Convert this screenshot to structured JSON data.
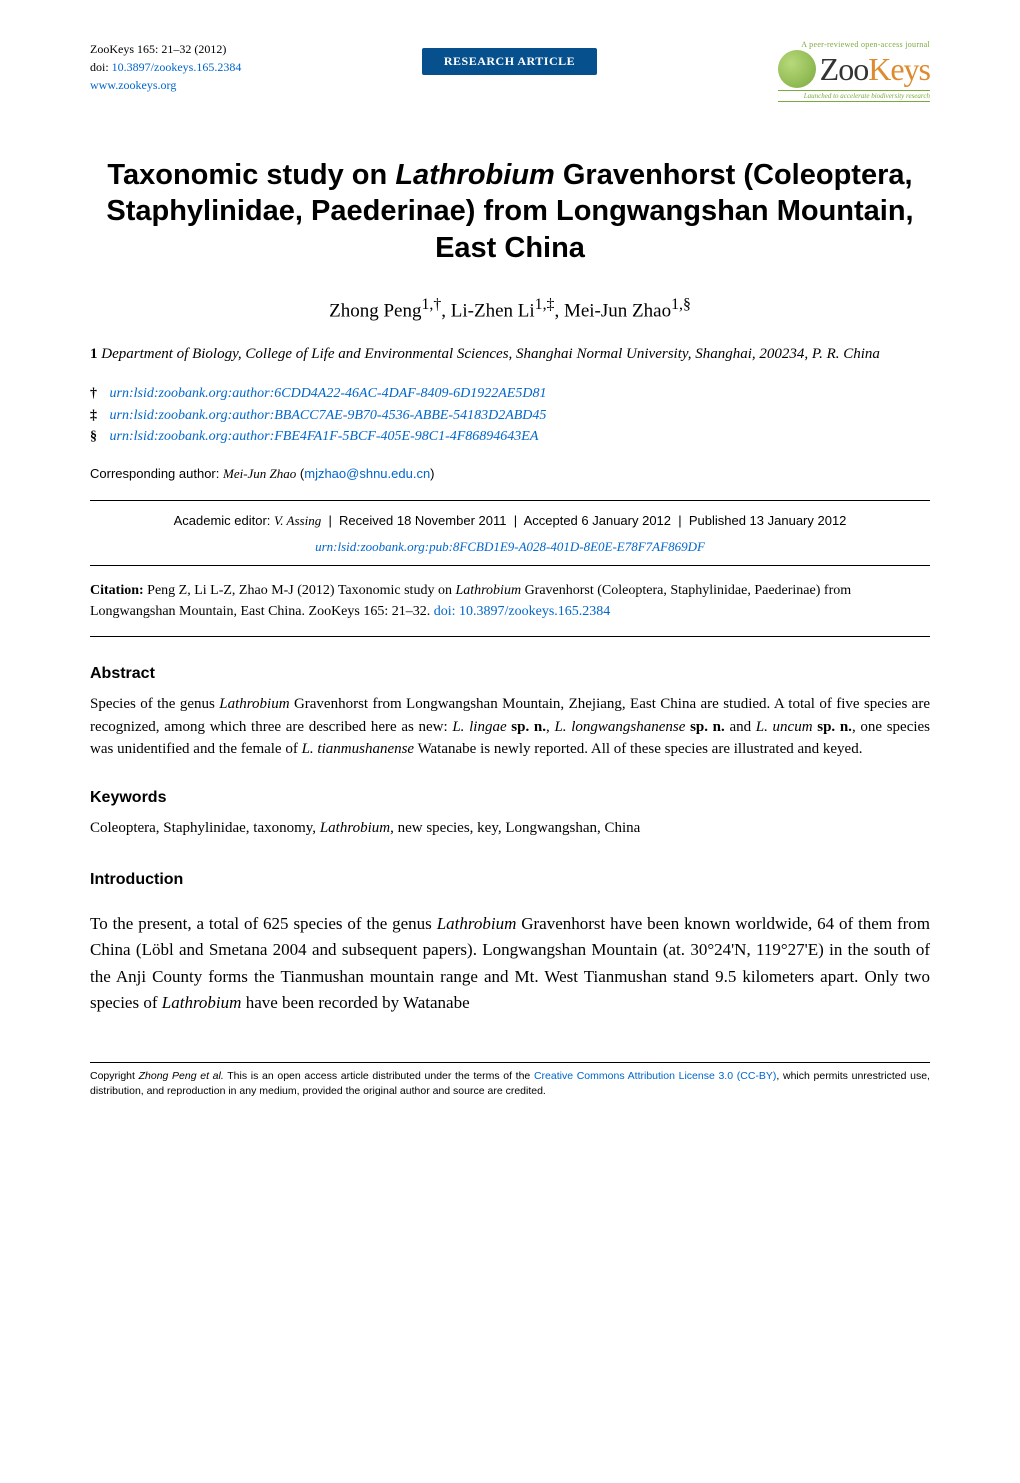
{
  "journal": {
    "ref": "ZooKeys 165: 21–32 (2012)",
    "doi_label": "doi: ",
    "doi": "10.3897/zookeys.165.2384",
    "site": "www.zookeys.org",
    "badge": "RESEARCH ARTICLE",
    "logo_top": "A peer-reviewed open-access journal",
    "logo_zoo": "Zoo",
    "logo_keys": "Keys",
    "logo_bottom": "Launched to accelerate biodiversity research"
  },
  "title_pre": "Taxonomic study on ",
  "title_genus": "Lathrobium",
  "title_post": " Gravenhorst (Coleoptera, Staphylinidae, Paederinae) from Longwangshan Mountain, East China",
  "authors": "Zhong Peng",
  "authors_sup1": "1,†",
  "authors_2": ", Li-Zhen Li",
  "authors_sup2": "1,‡",
  "authors_3": ", Mei-Jun Zhao",
  "authors_sup3": "1,§",
  "affiliation_num": "1",
  "affiliation": " Department of Biology, College of Life and Environmental Sciences, Shanghai Normal University, Shanghai, 200234, P. R. China",
  "urn1_sym": "†",
  "urn1": "urn:lsid:zoobank.org:author:6CDD4A22-46AC-4DAF-8409-6D1922AE5D81",
  "urn2_sym": "‡",
  "urn2": "urn:lsid:zoobank.org:author:BBACC7AE-9B70-4536-ABBE-54183D2ABD45",
  "urn3_sym": "§",
  "urn3": "urn:lsid:zoobank.org:author:FBE4FA1F-5BCF-405E-98C1-4F86894643EA",
  "corr_label": "Corresponding author: ",
  "corr_name": "Mei-Jun Zhao",
  "corr_email": "mjzhao@shnu.edu.cn",
  "editor_label": "Academic editor: ",
  "editor_name": "V. Assing",
  "received": "Received 18 November 2011",
  "accepted": "Accepted 6 January 2012",
  "published": "Published 13 January 2012",
  "record_urn": "urn:lsid:zoobank.org:pub:8FCBD1E9-A028-401D-8E0E-E78F7AF869DF",
  "citation_label": "Citation:",
  "citation_pre": " Peng Z, Li L-Z, Zhao M-J (2012) Taxonomic study on ",
  "citation_genus": "Lathrobium",
  "citation_post": " Gravenhorst (Coleoptera, Staphylinidae, Paederinae) from Longwangshan Mountain, East China. ZooKeys 165: 21–32. ",
  "citation_doi_label": "doi: ",
  "citation_doi": "10.3897/zookeys.165.2384",
  "abstract_head": "Abstract",
  "abstract_1": "Species of the genus ",
  "abstract_genus": "Lathrobium",
  "abstract_2": " Gravenhorst from Longwangshan Mountain, Zhejiang, East China are studied. A total of five species are recognized, among which three are described here as new: ",
  "abstract_sp1": "L. lingae",
  "abstract_spn1": "sp. n.",
  "abstract_3": ", ",
  "abstract_sp2": "L. longwangshanense",
  "abstract_spn2": "sp. n.",
  "abstract_4": " and ",
  "abstract_sp3": "L. uncum",
  "abstract_spn3": "sp. n.",
  "abstract_5": ", one species was unidentified and the female of ",
  "abstract_sp4": "L. tianmushanense",
  "abstract_6": " Watanabe is newly reported. All of these species are illustrated and keyed.",
  "keywords_head": "Keywords",
  "keywords_1": "Coleoptera, Staphylinidae, taxonomy, ",
  "keywords_genus": "Lathrobium",
  "keywords_2": ", new species, key, Longwangshan, China",
  "intro_head": "Introduction",
  "intro_1": "To the present, a total of 625 species of the genus ",
  "intro_genus": "Lathrobium",
  "intro_2": " Gravenhorst have been known worldwide, 64 of them from China (Löbl and Smetana 2004 and subsequent papers). Longwangshan Mountain (at. 30°24'N, 119°27'E) in the south of the Anji County forms the Tianmushan mountain range and Mt. West Tianmushan stand 9.5 kilometers apart. Only two species of ",
  "intro_genus2": "Lathrobium",
  "intro_3": " have been recorded by Watanabe",
  "footer_pre": "Copyright ",
  "footer_auth": "Zhong Peng et al.",
  "footer_post": " This is an open access article distributed under the terms of the ",
  "footer_link": "Creative Commons Attribution License 3.0 (CC-BY)",
  "footer_end": ", which permits unrestricted use, distribution, and reproduction in any medium, provided the original author and source are credited."
}
